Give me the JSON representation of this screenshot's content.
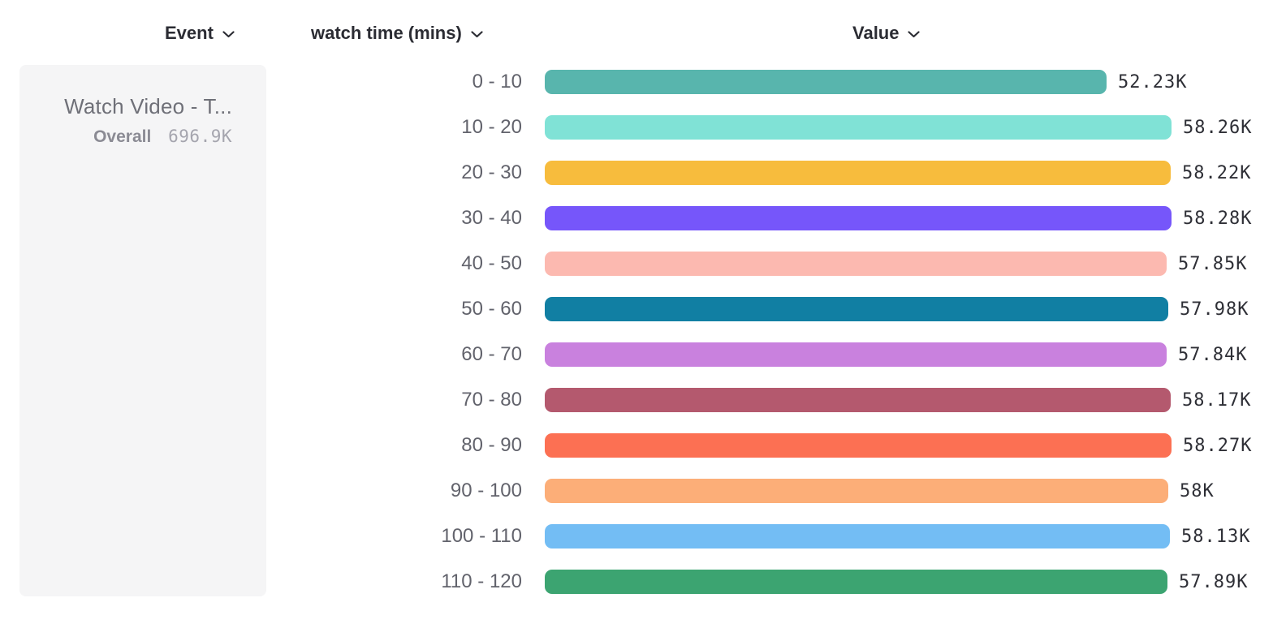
{
  "header": {
    "event": {
      "label": "Event"
    },
    "breakdown": {
      "label": "watch time (mins)"
    },
    "value": {
      "label": "Value"
    }
  },
  "event_card": {
    "title": "Watch Video - T...",
    "overall_label": "Overall",
    "overall_value": "696.9K"
  },
  "colors": {
    "page_bg": "#ffffff",
    "card_bg": "#f5f5f6",
    "header_text": "#2b2c33",
    "bucket_label_text": "#62636c",
    "value_label_text": "#2e2f36",
    "card_title_text": "#6f7078",
    "overall_label_text": "#8b8b94",
    "overall_value_text": "#a5a5ae"
  },
  "chart_data": {
    "type": "bar",
    "orientation": "horizontal",
    "title": "",
    "xlabel": "Value",
    "ylabel": "watch time (mins)",
    "xlim": [
      0,
      58280
    ],
    "grid": false,
    "legend": false,
    "categories": [
      "0 - 10",
      "10 - 20",
      "20 - 30",
      "30 - 40",
      "40 - 50",
      "50 - 60",
      "60 - 70",
      "70 - 80",
      "80 - 90",
      "90 - 100",
      "100 - 110",
      "110 - 120"
    ],
    "values": [
      52230,
      58260,
      58220,
      58280,
      57850,
      57980,
      57840,
      58170,
      58270,
      58000,
      58130,
      57890
    ],
    "value_labels": [
      "52.23K",
      "58.26K",
      "58.22K",
      "58.28K",
      "57.85K",
      "57.98K",
      "57.84K",
      "58.17K",
      "58.27K",
      "58K",
      "58.13K",
      "57.89K"
    ],
    "bar_colors": [
      "#58b5ad",
      "#80e2d6",
      "#f7bc3d",
      "#7656fa",
      "#fcb9b0",
      "#117fa3",
      "#c981de",
      "#b4596e",
      "#fc7053",
      "#fcae78",
      "#73bdf4",
      "#3ca471"
    ]
  }
}
